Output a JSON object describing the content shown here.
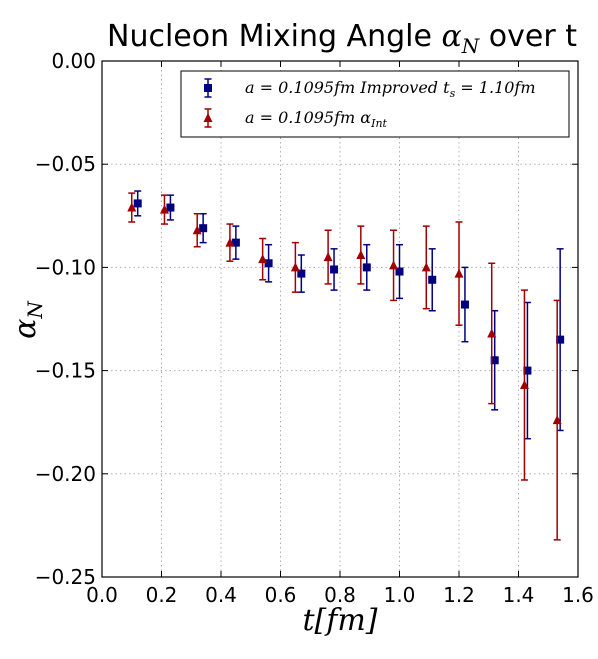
{
  "chart_data": {
    "type": "scatter",
    "title": "Nucleon Mixing Angle αN over t",
    "title_parts": {
      "prefix": "Nucleon Mixing Angle ",
      "symbol": "α",
      "subscript": "N",
      "suffix": " over t"
    },
    "xlabel": "t[fm]",
    "ylabel": "αN",
    "xlim": [
      0.0,
      1.6
    ],
    "ylim": [
      -0.25,
      0.0
    ],
    "x_ticks": [
      "0.0",
      "0.2",
      "0.4",
      "0.6",
      "0.8",
      "1.0",
      "1.2",
      "1.4",
      "1.6"
    ],
    "y_ticks": [
      "0.00",
      "−0.05",
      "−0.10",
      "−0.15",
      "−0.20",
      "−0.25"
    ],
    "grid": true,
    "legend_position": "top-right",
    "series": [
      {
        "name": "a = 0.1095fm Improved ts = 1.10fm",
        "color": "#000080",
        "marker": "square",
        "points": [
          {
            "x": 0.12,
            "y": -0.069,
            "err": 0.006
          },
          {
            "x": 0.23,
            "y": -0.071,
            "err": 0.006
          },
          {
            "x": 0.34,
            "y": -0.081,
            "err": 0.007
          },
          {
            "x": 0.45,
            "y": -0.088,
            "err": 0.008
          },
          {
            "x": 0.56,
            "y": -0.098,
            "err": 0.009
          },
          {
            "x": 0.67,
            "y": -0.103,
            "err": 0.009
          },
          {
            "x": 0.78,
            "y": -0.101,
            "err": 0.01
          },
          {
            "x": 0.89,
            "y": -0.1,
            "err": 0.011
          },
          {
            "x": 1.0,
            "y": -0.102,
            "err": 0.013
          },
          {
            "x": 1.11,
            "y": -0.106,
            "err": 0.015
          },
          {
            "x": 1.22,
            "y": -0.118,
            "err": 0.018
          },
          {
            "x": 1.32,
            "y": -0.145,
            "err": 0.024
          },
          {
            "x": 1.43,
            "y": -0.15,
            "err": 0.033
          },
          {
            "x": 1.54,
            "y": -0.135,
            "err": 0.044
          }
        ]
      },
      {
        "name": "a = 0.1095fm αInt",
        "color": "#a00000",
        "marker": "triangle",
        "points": [
          {
            "x": 0.1,
            "y": -0.071,
            "err": 0.007
          },
          {
            "x": 0.21,
            "y": -0.072,
            "err": 0.007
          },
          {
            "x": 0.32,
            "y": -0.082,
            "err": 0.008
          },
          {
            "x": 0.43,
            "y": -0.088,
            "err": 0.009
          },
          {
            "x": 0.54,
            "y": -0.096,
            "err": 0.01
          },
          {
            "x": 0.65,
            "y": -0.1,
            "err": 0.012
          },
          {
            "x": 0.76,
            "y": -0.095,
            "err": 0.013
          },
          {
            "x": 0.87,
            "y": -0.094,
            "err": 0.014
          },
          {
            "x": 0.98,
            "y": -0.099,
            "err": 0.017
          },
          {
            "x": 1.09,
            "y": -0.1,
            "err": 0.02
          },
          {
            "x": 1.2,
            "y": -0.103,
            "err": 0.025
          },
          {
            "x": 1.31,
            "y": -0.132,
            "err": 0.034
          },
          {
            "x": 1.42,
            "y": -0.157,
            "err": 0.046
          },
          {
            "x": 1.53,
            "y": -0.174,
            "err": 0.058
          }
        ]
      }
    ],
    "legend": [
      {
        "prefix": "a = 0.1095fm Improved t",
        "subscript": "s",
        "suffix": " = 1.10fm"
      },
      {
        "prefix": "a = 0.1095fm α",
        "subscript": "Int",
        "suffix": ""
      }
    ]
  }
}
